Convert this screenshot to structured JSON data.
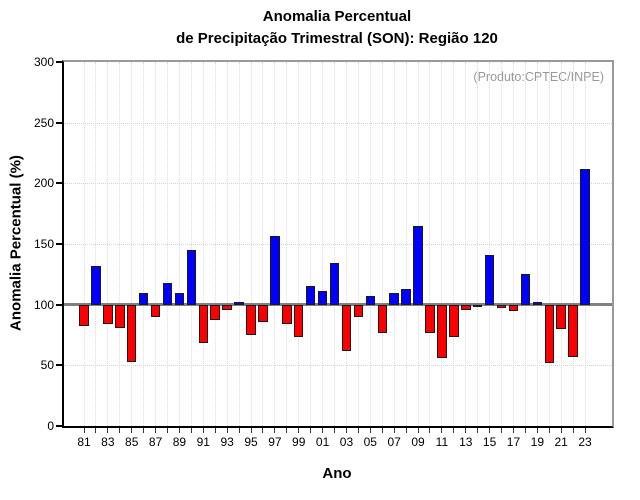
{
  "title": {
    "line1": "Anomalia Percentual",
    "line2": "de Precipitação Trimestral (SON): Região 120"
  },
  "annotation": "(Produto:CPTEC/INPE)",
  "colors": {
    "positive_bar": "#0000fb",
    "negative_bar": "#fb0000",
    "baseline": "#808080",
    "grid": "#d4d4d4",
    "annotation_text": "#999999"
  },
  "chart_data": {
    "type": "bar",
    "title": "Anomalia Percentual de Precipitação Trimestral (SON): Região 120",
    "xlabel": "Ano",
    "ylabel": "Anomalia Percentual (%)",
    "ylim": [
      0,
      300
    ],
    "yticks": [
      0,
      50,
      100,
      150,
      200,
      250,
      300
    ],
    "baseline": 100,
    "grid": true,
    "legend": "none",
    "color_rule": "blue if value >= 100 else red",
    "x": [
      1981,
      1982,
      1983,
      1984,
      1985,
      1986,
      1987,
      1988,
      1989,
      1990,
      1991,
      1992,
      1993,
      1994,
      1995,
      1996,
      1997,
      1998,
      1999,
      2000,
      2001,
      2002,
      2003,
      2004,
      2005,
      2006,
      2007,
      2008,
      2009,
      2010,
      2011,
      2012,
      2013,
      2014,
      2015,
      2016,
      2017,
      2018,
      2019,
      2020,
      2021,
      2022,
      2023
    ],
    "values": [
      82,
      132,
      84,
      81,
      53,
      110,
      90,
      118,
      110,
      145,
      68,
      87,
      96,
      102,
      75,
      86,
      157,
      84,
      73,
      115,
      111,
      134,
      62,
      90,
      107,
      77,
      110,
      113,
      165,
      77,
      56,
      73,
      96,
      98,
      141,
      97,
      95,
      125,
      102,
      52,
      80,
      57,
      212
    ],
    "x_tick_labels": [
      "81",
      "83",
      "85",
      "87",
      "89",
      "91",
      "93",
      "95",
      "97",
      "99",
      "01",
      "03",
      "05",
      "07",
      "09",
      "11",
      "13",
      "15",
      "17",
      "19",
      "21",
      "23"
    ]
  }
}
